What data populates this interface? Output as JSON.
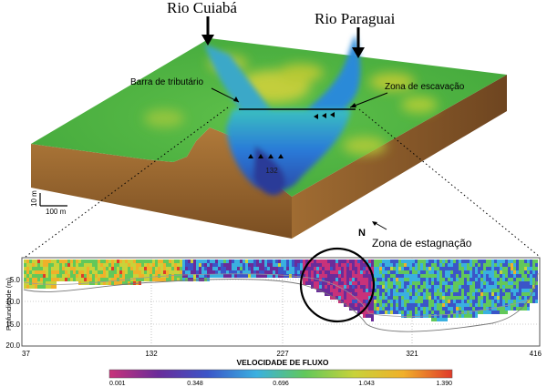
{
  "labels": {
    "rio_cuiaba": "Rio Cuiabá",
    "rio_paraguai": "Rio Paraguai",
    "barra": "Barra de tributário",
    "zona_escavacao": "Zona de escavação",
    "depth_132": "132",
    "scale_vertical": "10 m",
    "scale_horizontal": "100 m",
    "north": "N",
    "zona_estagnacao": "Zona de estagnação"
  },
  "profile": {
    "ylabel": "Profundidade (m)",
    "y_ticks": [
      "5.0",
      "10.0",
      "15.0",
      "20.0"
    ],
    "x_ticks": [
      "37",
      "132",
      "227",
      "321",
      "416"
    ],
    "xlabel": "VELOCIDADE DE FLUXO"
  },
  "colorbar": {
    "ticks": [
      "0.001",
      "0.348",
      "0.696",
      "1.043",
      "1.390"
    ],
    "colors": [
      "#c8327a",
      "#6a2c9a",
      "#3b55c8",
      "#3ab0e0",
      "#62c85a",
      "#c8d23a",
      "#f0b02a",
      "#e03a2a"
    ]
  },
  "chart_data": {
    "type": "heatmap",
    "xlabel": "VELOCIDADE DE FLUXO",
    "ylabel": "Profundidade (m)",
    "x_range": [
      37,
      416
    ],
    "y_range": [
      0,
      20
    ],
    "colorbar_range": [
      0.001,
      1.39
    ]
  }
}
